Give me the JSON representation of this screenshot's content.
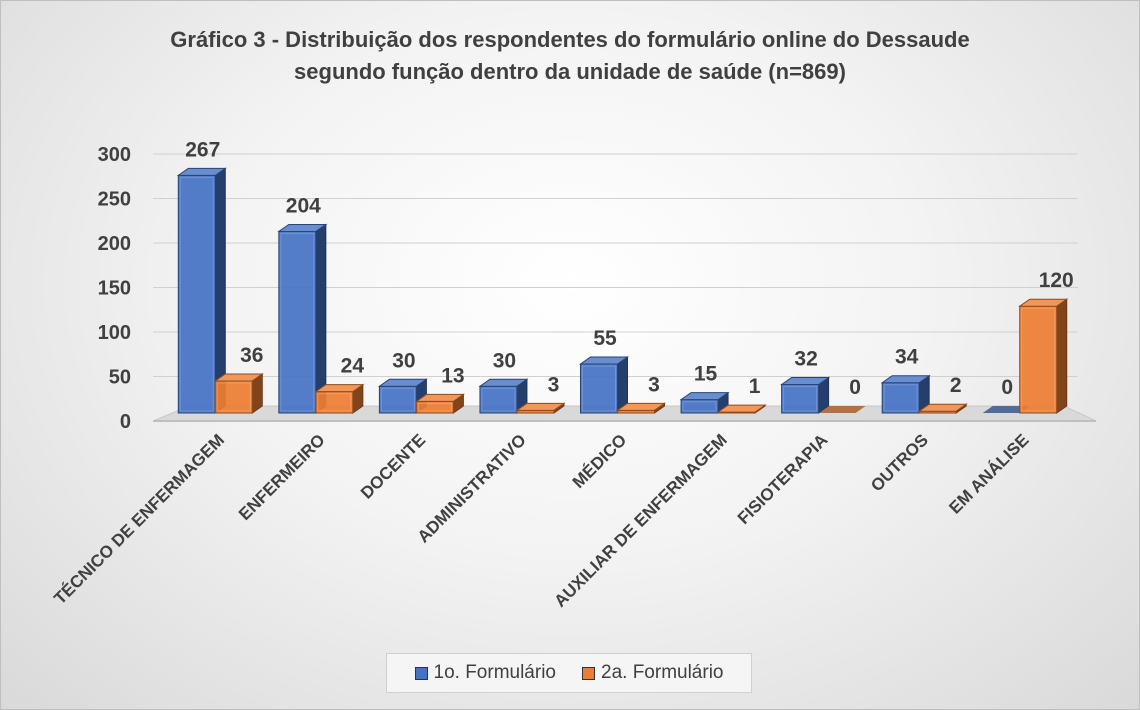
{
  "chart_data": {
    "type": "bar",
    "title": "Gráfico 3 - Distribuição dos respondentes do formulário online do Dessaude segundo função dentro da unidade de saúde (n=869)",
    "title_lines": [
      "Gráfico 3 - Distribuição dos respondentes do formulário online do Dessaude",
      "segundo função dentro da unidade de saúde (n=869)"
    ],
    "categories": [
      "TÉCNICO DE ENFERMAGEM",
      "ENFERMEIRO",
      "DOCENTE",
      "ADMINISTRATIVO",
      "MÉDICO",
      "AUXILIAR DE ENFERMAGEM",
      "FISIOTERAPIA",
      "OUTROS",
      "EM ANÁLISE"
    ],
    "series": [
      {
        "name": "1o. Formulário",
        "values": [
          267,
          204,
          30,
          30,
          55,
          15,
          32,
          34,
          0
        ],
        "color": "#4472C4"
      },
      {
        "name": "2a. Formulário",
        "values": [
          36,
          24,
          13,
          3,
          3,
          1,
          0,
          2,
          120
        ],
        "color": "#ED7D31"
      }
    ],
    "ylim": [
      0,
      300
    ],
    "yticks": [
      0,
      50,
      100,
      150,
      200,
      250,
      300
    ],
    "xlabel": "",
    "ylabel": "",
    "grid": true,
    "legend_position": "bottom",
    "style": "3d-clustered-column"
  }
}
